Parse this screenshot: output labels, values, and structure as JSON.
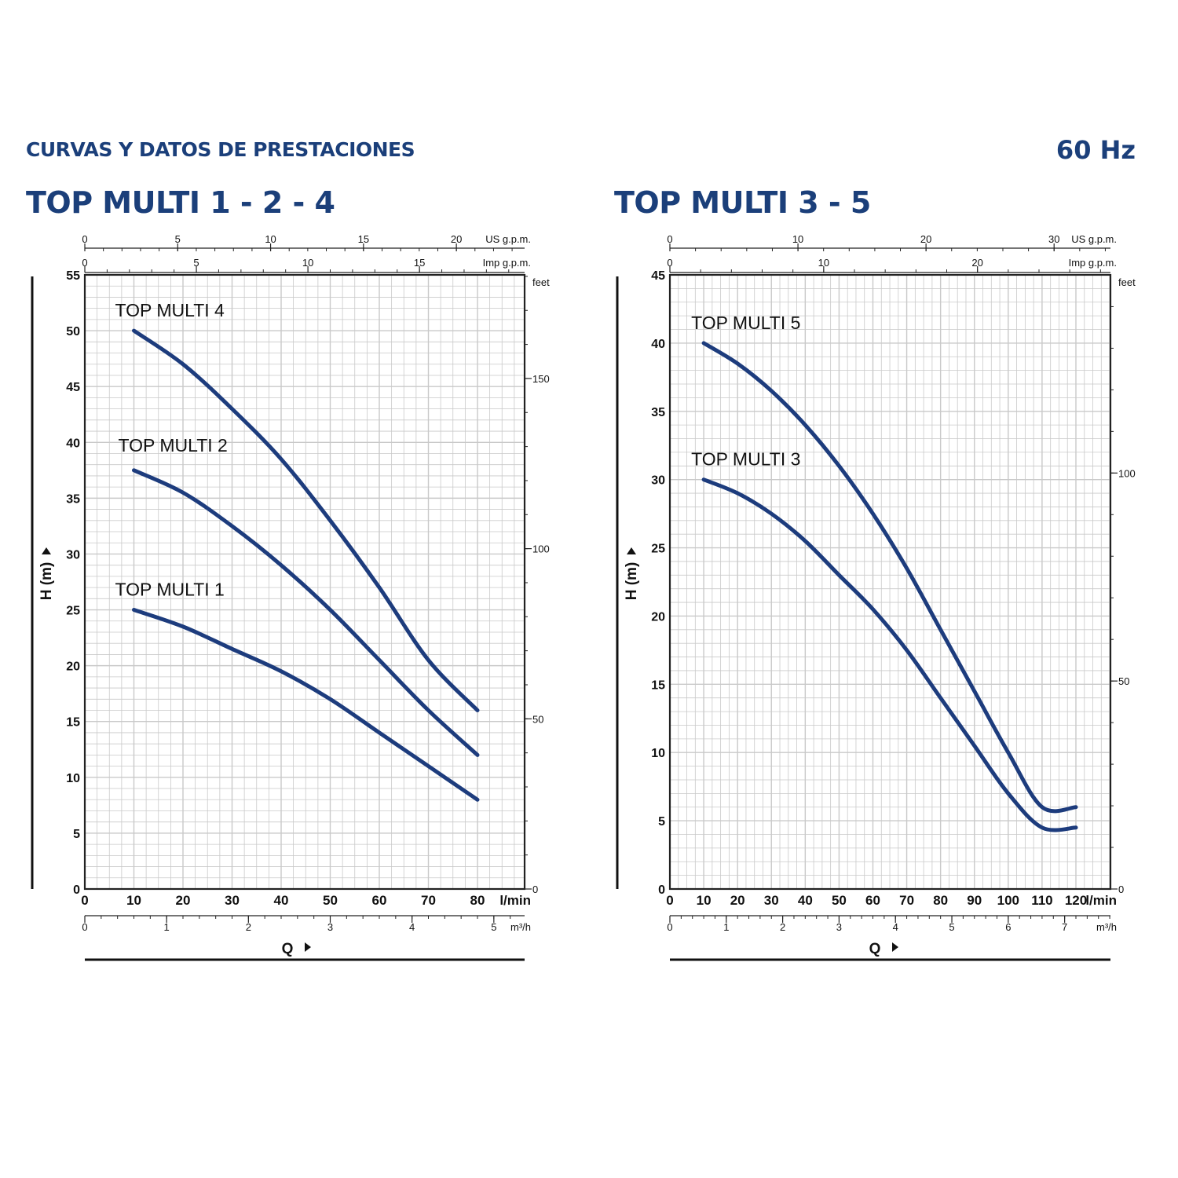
{
  "header": {
    "section_title": "CURVAS Y DATOS DE PRESTACIONES",
    "frequency": "60 Hz"
  },
  "colors": {
    "accent": "#1b3f7a",
    "curve": "#1d3c7d",
    "grid": "#c9c9c9",
    "axis": "#222222"
  },
  "chart_data": [
    {
      "type": "line",
      "title": "TOP MULTI 1 - 2 - 4",
      "xlabel": "Q",
      "ylabel": "H (m)",
      "x_unit": "l/min",
      "xlim": [
        0,
        90
      ],
      "ylim": [
        0,
        55
      ],
      "x_ticks": [
        "0",
        "10",
        "20",
        "30",
        "40",
        "50",
        "60",
        "70",
        "80"
      ],
      "y_ticks": [
        "0",
        "5",
        "10",
        "15",
        "20",
        "25",
        "30",
        "35",
        "40",
        "45",
        "50",
        "55"
      ],
      "grid": true,
      "secondary_axes": {
        "us_gpm": {
          "unit": "US g.p.m.",
          "ticks": [
            "0",
            "5",
            "10",
            "15",
            "20"
          ]
        },
        "imp_gpm": {
          "unit": "Imp g.p.m.",
          "ticks": [
            "0",
            "5",
            "10",
            "15"
          ]
        },
        "feet": {
          "unit": "feet",
          "ticks": [
            "0",
            "50",
            "100",
            "150"
          ]
        },
        "m3h": {
          "unit": "m³/h",
          "ticks": [
            "0",
            "1",
            "2",
            "3",
            "4",
            "5"
          ]
        }
      },
      "series": [
        {
          "name": "TOP MULTI 4",
          "x": [
            10,
            20,
            30,
            40,
            50,
            60,
            70,
            80
          ],
          "y": [
            50,
            47,
            43,
            38.5,
            33,
            27,
            20.5,
            16
          ]
        },
        {
          "name": "TOP MULTI 2",
          "x": [
            10,
            20,
            30,
            40,
            50,
            60,
            70,
            80
          ],
          "y": [
            37.5,
            35.5,
            32.5,
            29,
            25,
            20.5,
            16,
            12
          ]
        },
        {
          "name": "TOP MULTI 1",
          "x": [
            10,
            20,
            30,
            40,
            50,
            60,
            70,
            80
          ],
          "y": [
            25,
            23.5,
            21.5,
            19.5,
            17,
            14,
            11,
            8
          ]
        }
      ]
    },
    {
      "type": "line",
      "title": "TOP MULTI 3 - 5",
      "xlabel": "Q",
      "ylabel": "H (m)",
      "x_unit": "l/min",
      "xlim": [
        0,
        130
      ],
      "ylim": [
        0,
        45
      ],
      "x_ticks": [
        "0",
        "10",
        "20",
        "30",
        "40",
        "50",
        "60",
        "70",
        "80",
        "90",
        "100",
        "110",
        "120"
      ],
      "y_ticks": [
        "0",
        "5",
        "10",
        "15",
        "20",
        "25",
        "30",
        "35",
        "40",
        "45"
      ],
      "grid": true,
      "secondary_axes": {
        "us_gpm": {
          "unit": "US g.p.m.",
          "ticks": [
            "0",
            "10",
            "20",
            "30"
          ]
        },
        "imp_gpm": {
          "unit": "Imp g.p.m.",
          "ticks": [
            "0",
            "10",
            "20"
          ]
        },
        "feet": {
          "unit": "feet",
          "ticks": [
            "0",
            "50",
            "100"
          ]
        },
        "m3h": {
          "unit": "m³/h",
          "ticks": [
            "0",
            "1",
            "2",
            "3",
            "4",
            "5",
            "6",
            "7"
          ]
        }
      },
      "series": [
        {
          "name": "TOP MULTI 5",
          "x": [
            10,
            20,
            30,
            40,
            50,
            60,
            70,
            80,
            90,
            100,
            110,
            120
          ],
          "y": [
            40,
            38.5,
            36.5,
            34,
            31,
            27.5,
            23.5,
            19,
            14.5,
            10,
            6,
            6
          ]
        },
        {
          "name": "TOP MULTI 3",
          "x": [
            10,
            20,
            30,
            40,
            50,
            60,
            70,
            80,
            90,
            100,
            110,
            120
          ],
          "y": [
            30,
            29,
            27.5,
            25.5,
            23,
            20.5,
            17.5,
            14,
            10.5,
            7,
            4.5,
            4.5
          ]
        }
      ]
    }
  ]
}
